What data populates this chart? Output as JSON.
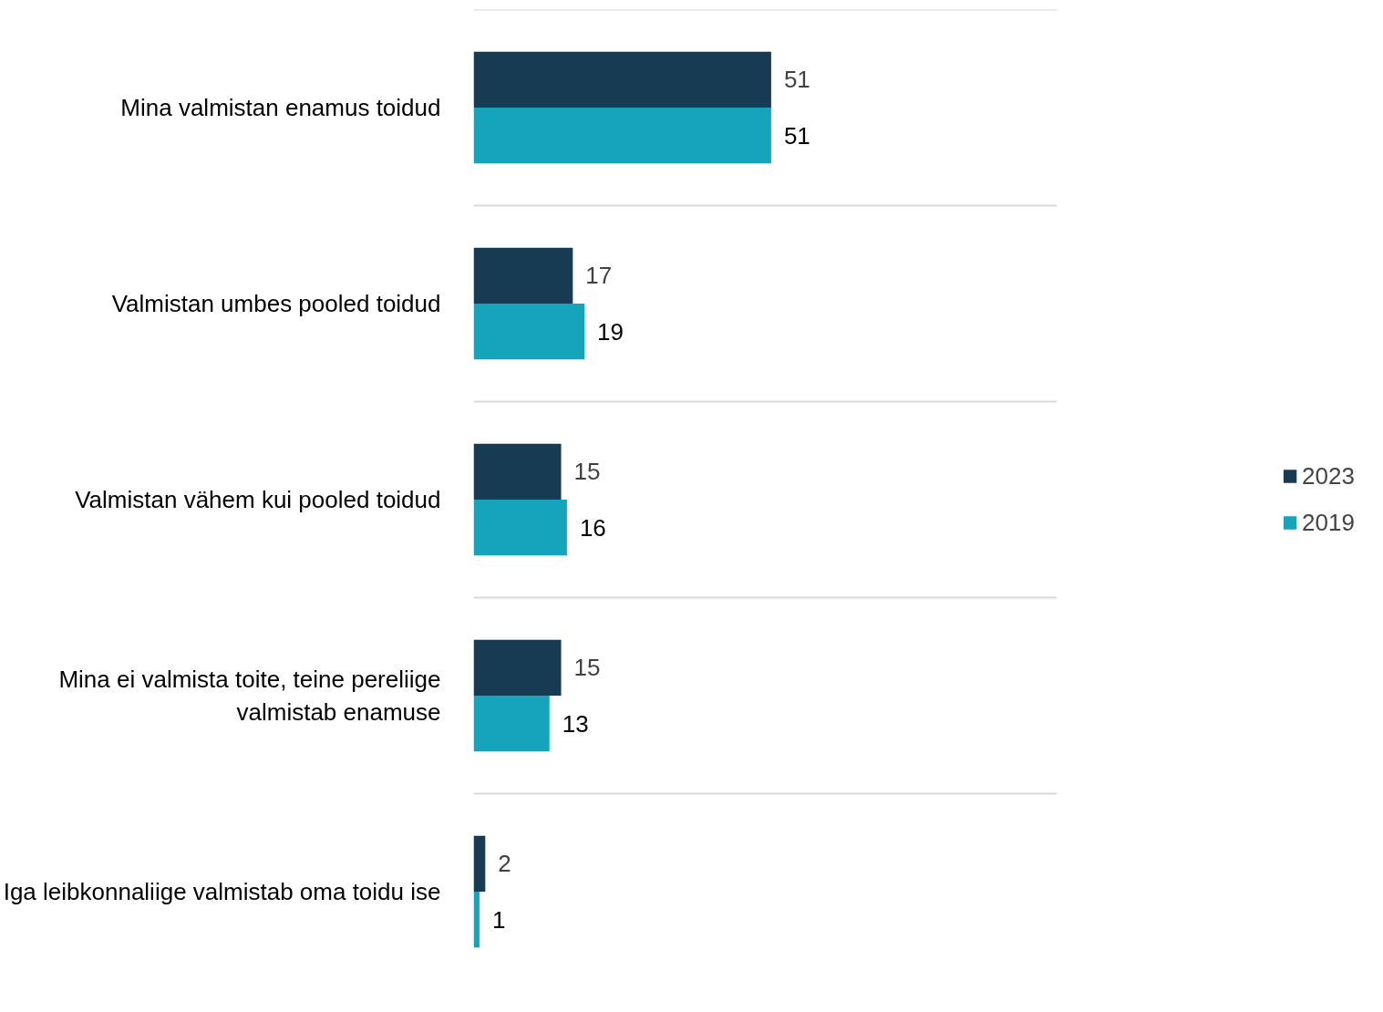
{
  "chart_data": {
    "type": "bar",
    "orientation": "horizontal",
    "categories": [
      "Mina valmistan enamus toidud",
      "Valmistan umbes pooled toidud",
      "Valmistan vähem kui pooled toidud",
      "Mina ei valmista toite, teine pereliige valmistab enamuse",
      "Iga leibkonnaliige valmistab oma toidu ise"
    ],
    "series": [
      {
        "name": "2023",
        "color": "#173b52",
        "values": [
          51,
          17,
          15,
          15,
          2
        ]
      },
      {
        "name": "2019",
        "color": "#16a4bc",
        "values": [
          51,
          19,
          16,
          13,
          1
        ]
      }
    ],
    "xlim": [
      0,
      100
    ],
    "data_labels": true,
    "grid": "y",
    "legend": "right",
    "tick_labels": "y"
  }
}
